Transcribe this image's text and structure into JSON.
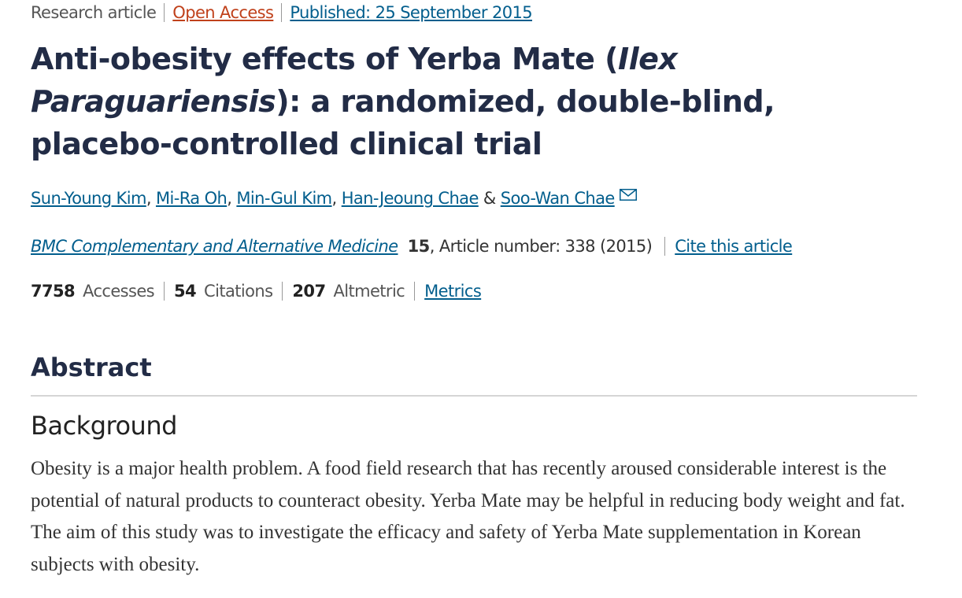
{
  "meta": {
    "type": "Research article",
    "access": "Open Access",
    "published": "Published: 25 September 2015"
  },
  "title": {
    "part1": "Anti-obesity effects of Yerba Mate (",
    "italic": "Ilex Paraguariensis",
    "part2": "): a randomized, double-blind, placebo-controlled clinical trial"
  },
  "authors": [
    "Sun-Young Kim",
    "Mi-Ra Oh",
    "Min-Gul Kim",
    "Han-Jeoung Chae",
    "Soo-Wan Chae"
  ],
  "author_sep": ", ",
  "author_and": " & ",
  "journal": {
    "name": "BMC Complementary and Alternative Medicine",
    "volume": "15",
    "article": ", Article number: 338 (2015)",
    "cite": "Cite this article"
  },
  "metrics": {
    "accesses": "7758",
    "accesses_label": "Accesses",
    "citations": "54",
    "citations_label": "Citations",
    "altmetric": "207",
    "altmetric_label": "Altmetric",
    "link": "Metrics"
  },
  "abstract": {
    "heading": "Abstract",
    "background_heading": "Background",
    "background_text": "Obesity is a major health problem. A food field research that has recently aroused considerable interest is the potential of natural products to counteract obesity. Yerba Mate may be helpful in reducing body weight and fat. The aim of this study was to investigate the efficacy and safety of Yerba Mate supplementation in Korean subjects with obesity."
  },
  "colors": {
    "link": "#025e8d",
    "open_access": "#c0411b",
    "heading": "#222c46"
  },
  "icons": {
    "author_contact": "envelope-icon"
  }
}
